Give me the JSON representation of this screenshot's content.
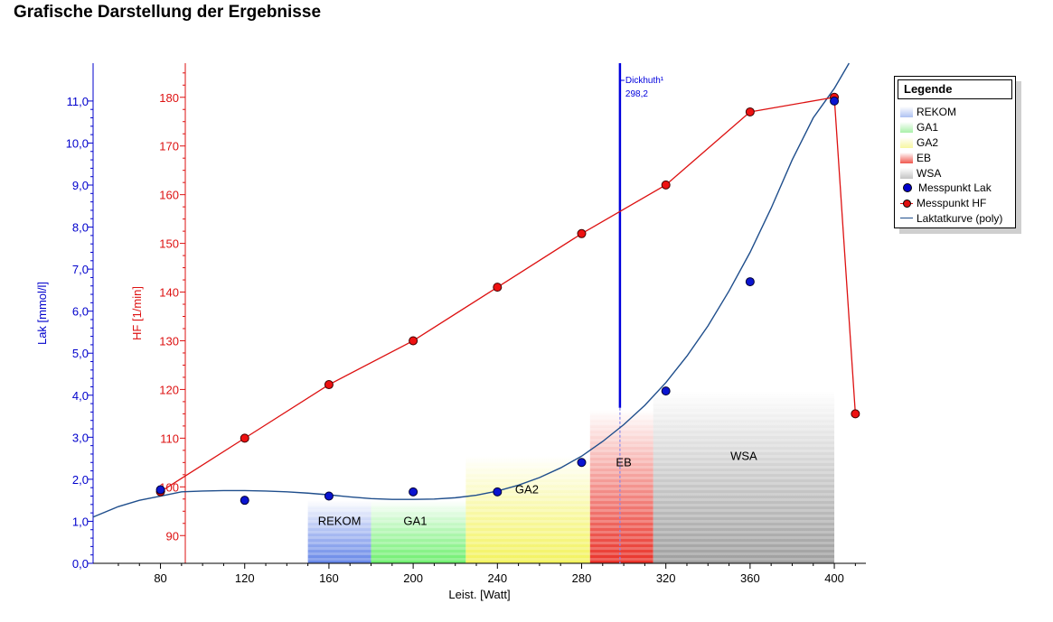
{
  "page": {
    "title": "Grafische Darstellung der Ergebnisse"
  },
  "colors": {
    "lak": "#0000cc",
    "hf": "#dd1111",
    "curve": "#1f4e8c",
    "dickhuth": "#0000dd",
    "rekom": "#5d7fe6",
    "ga1": "#66ee66",
    "ga2": "#f2f255",
    "eb": "#e8281e",
    "wsa": "#9a9a9a"
  },
  "chart_data": {
    "type": "line",
    "xlabel": "Leist. [Watt]",
    "x_ticks": [
      80,
      120,
      160,
      200,
      240,
      280,
      320,
      360,
      400
    ],
    "xlim": [
      48,
      415
    ],
    "lak_axis": {
      "label": "Lak [mmol/l]",
      "ylim": [
        0,
        11.9
      ],
      "ticks": [
        "0,0",
        "1,0",
        "2,0",
        "3,0",
        "4,0",
        "5,0",
        "6,0",
        "7,0",
        "8,0",
        "9,0",
        "10,0",
        "11,0"
      ]
    },
    "hf_axis": {
      "label": "HF [1/min]",
      "ylim": [
        84.3,
        187
      ],
      "ticks": [
        90,
        100,
        110,
        120,
        130,
        140,
        150,
        160,
        170,
        180
      ]
    },
    "zones": [
      {
        "name": "REKOM",
        "x_start": 150,
        "x_end": 180,
        "top_lak": 1.5
      },
      {
        "name": "GA1",
        "x_start": 180,
        "x_end": 225,
        "top_lak": 1.5
      },
      {
        "name": "GA2",
        "x_start": 225,
        "x_end": 284,
        "top_lak": 2.55
      },
      {
        "name": "EB",
        "x_start": 284,
        "x_end": 314,
        "top_lak": 3.65
      },
      {
        "name": "WSA",
        "x_start": 314,
        "x_end": 400,
        "top_lak": 4.1
      }
    ],
    "zone_labels": {
      "REKOM": "REKOM",
      "GA1": "GA1",
      "GA2": "GA2",
      "EB": "EB",
      "WSA": "WSA"
    },
    "series": [
      {
        "name": "Messpunkt Lak",
        "axis": "lak",
        "x": [
          80,
          120,
          160,
          200,
          240,
          280,
          320,
          360,
          400
        ],
        "values": [
          1.75,
          1.5,
          1.6,
          1.7,
          1.7,
          2.4,
          4.1,
          6.7,
          11.0
        ]
      },
      {
        "name": "Messpunkt HF",
        "axis": "hf",
        "x": [
          80,
          120,
          160,
          200,
          240,
          280,
          320,
          360,
          400,
          410
        ],
        "values": [
          99,
          110,
          121,
          130,
          141,
          152,
          162,
          177,
          180,
          115
        ]
      },
      {
        "name": "Laktatkurve (poly)",
        "axis": "lak",
        "x": [
          48,
          60,
          70,
          80,
          90,
          100,
          110,
          120,
          130,
          140,
          150,
          160,
          170,
          180,
          190,
          200,
          210,
          220,
          230,
          240,
          250,
          260,
          270,
          280,
          290,
          300,
          310,
          320,
          330,
          340,
          350,
          360,
          370,
          380,
          390,
          400,
          407
        ],
        "values": [
          1.1,
          1.35,
          1.5,
          1.6,
          1.7,
          1.72,
          1.73,
          1.73,
          1.72,
          1.7,
          1.67,
          1.63,
          1.58,
          1.54,
          1.52,
          1.52,
          1.53,
          1.56,
          1.62,
          1.72,
          1.86,
          2.04,
          2.27,
          2.55,
          2.9,
          3.3,
          3.76,
          4.3,
          4.93,
          5.65,
          6.48,
          7.4,
          8.45,
          9.6,
          10.6,
          11.3,
          11.9
        ]
      }
    ],
    "threshold": {
      "name": "Dickhuth¹",
      "x": 298.2,
      "label": "298,2",
      "top_lak": 3.7,
      "top_lak_line": 11.9
    }
  },
  "legend": {
    "title": "Legende",
    "items": [
      {
        "label": "REKOM",
        "kind": "swatch",
        "color": "#aec2f2"
      },
      {
        "label": "GA1",
        "kind": "swatch",
        "color": "#a8f0a8"
      },
      {
        "label": "GA2",
        "kind": "swatch",
        "color": "#f7f7a0"
      },
      {
        "label": "EB",
        "kind": "swatch",
        "color": "#f0584e"
      },
      {
        "label": "WSA",
        "kind": "swatch",
        "color": "#c4c4c4"
      },
      {
        "label": "Messpunkt Lak",
        "kind": "dot",
        "color": "#0000cc"
      },
      {
        "label": "Messpunkt HF",
        "kind": "linedot",
        "color": "#e01010"
      },
      {
        "label": "Laktatkurve (poly)",
        "kind": "line",
        "color": "#1f4e8c"
      }
    ]
  }
}
